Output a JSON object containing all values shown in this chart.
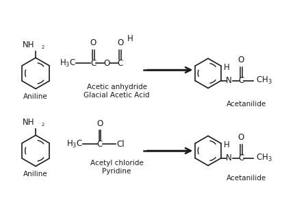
{
  "background_color": "#ffffff",
  "top_reaction": {
    "reagent_label": "Acetic anhydride",
    "condition_label": "Glacial Acetic Acid",
    "reactant_label": "Aniline",
    "product_label": "Acetanilide"
  },
  "bottom_reaction": {
    "reagent_label": "Acetyl chloride",
    "condition_label": "Pyridine",
    "reactant_label": "Aniline",
    "product_label": "Acetanilide"
  },
  "line_color": "#1a1a1a",
  "text_color": "#1a1a1a",
  "font_size_label": 7.5,
  "font_size_formula": 8.5
}
